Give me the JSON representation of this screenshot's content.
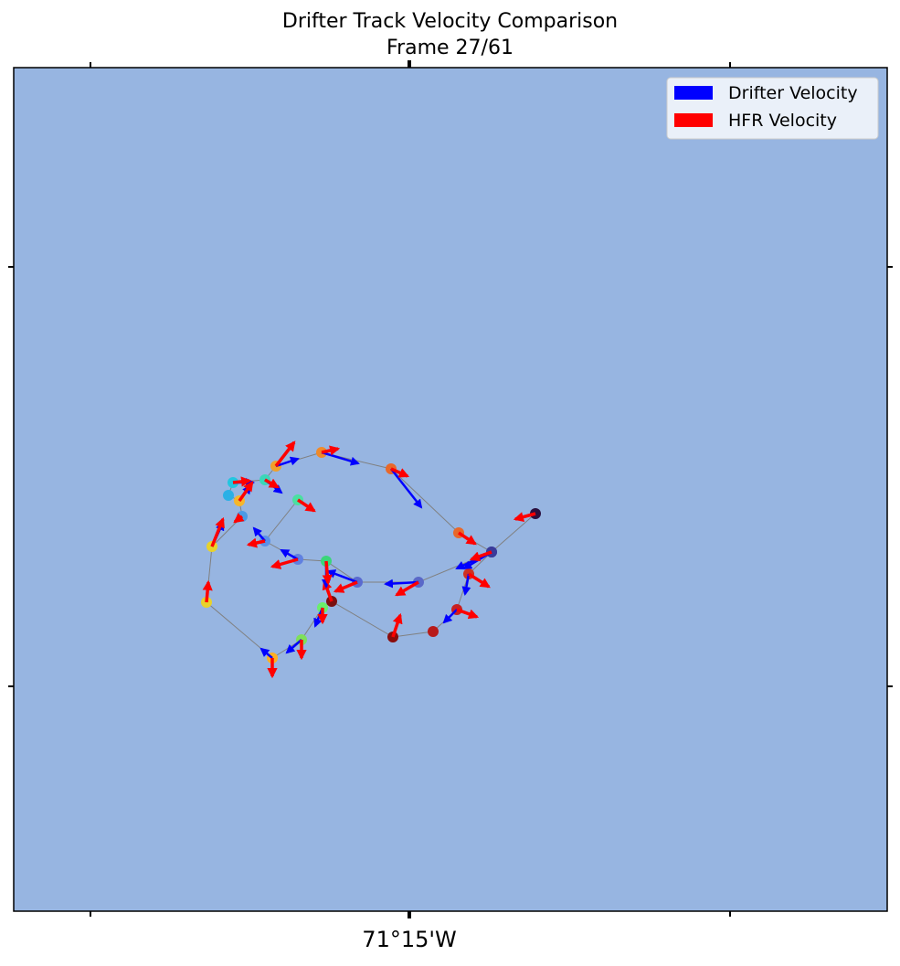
{
  "chart_data": {
    "type": "map-quiver",
    "title": "Drifter Track Velocity Comparison",
    "subtitle": "Frame 27/61",
    "ocean_color": "#97b5e1",
    "grid": false,
    "legend": {
      "placement": "top-right",
      "entries": [
        {
          "label": "Drifter Velocity",
          "color": "#0000ff"
        },
        {
          "label": "HFR Velocity",
          "color": "#ff0000"
        }
      ]
    },
    "x_axis": {
      "tick_labels": [
        "",
        "71°15'W",
        ""
      ]
    },
    "y_axis": {
      "tick_labels": [
        "",
        ""
      ]
    },
    "track": [
      {
        "pt": [
          586,
          562
        ],
        "color": "#2a0f3e",
        "drifter": [
          586,
          562
        ],
        "hfr": [
          -22,
          6
        ]
      },
      {
        "pt": [
          538,
          604
        ],
        "color": "#2f3fa0",
        "drifter": [
          -30,
          18
        ],
        "hfr": [
          -22,
          8
        ]
      },
      {
        "pt": [
          502,
          583
        ],
        "color": "#e8682a",
        "drifter": [
          0,
          0
        ],
        "hfr": [
          18,
          12
        ]
      },
      {
        "pt": [
          428,
          513
        ],
        "color": "#e8682a",
        "drifter": [
          33,
          42
        ],
        "hfr": [
          18,
          8
        ]
      },
      {
        "pt": [
          352,
          495
        ],
        "color": "#f08a2a",
        "drifter": [
          40,
          12
        ],
        "hfr": [
          18,
          -4
        ]
      },
      {
        "pt": [
          302,
          510
        ],
        "color": "#f0a02a",
        "drifter": [
          24,
          -8
        ],
        "hfr": [
          20,
          -26
        ]
      },
      {
        "pt": [
          290,
          525
        ],
        "color": "#3ad6b8",
        "drifter": [
          18,
          14
        ],
        "hfr": [
          14,
          8
        ]
      },
      {
        "pt": [
          255,
          528
        ],
        "color": "#22c6e0",
        "drifter": [
          22,
          0
        ],
        "hfr": [
          18,
          -2
        ]
      },
      {
        "pt": [
          250,
          542
        ],
        "color": "#2ab0e6",
        "drifter": [
          0,
          0
        ],
        "hfr": [
          0,
          0
        ]
      },
      {
        "pt": [
          262,
          548
        ],
        "color": "#f6b62a",
        "drifter": [
          12,
          -16
        ],
        "hfr": [
          14,
          -20
        ]
      },
      {
        "pt": [
          265,
          565
        ],
        "color": "#4a9ae6",
        "drifter": [
          0,
          0
        ],
        "hfr": [
          -8,
          6
        ]
      },
      {
        "pt": [
          232,
          598
        ],
        "color": "#e8d22a",
        "drifter": [
          12,
          -26
        ],
        "hfr": [
          12,
          -30
        ]
      },
      {
        "pt": [
          226,
          659
        ],
        "color": "#e8d22a",
        "drifter": [
          0,
          0
        ],
        "hfr": [
          2,
          -22
        ]
      },
      {
        "pt": [
          298,
          720
        ],
        "color": "#ffb020",
        "drifter": [
          -12,
          -10
        ],
        "hfr": [
          0,
          20
        ]
      },
      {
        "pt": [
          330,
          700
        ],
        "color": "#7ee05a",
        "drifter": [
          -16,
          14
        ],
        "hfr": [
          0,
          20
        ]
      },
      {
        "pt": [
          353,
          665
        ],
        "color": "#6aee6a",
        "drifter": [
          -8,
          20
        ],
        "hfr": [
          0,
          16
        ]
      },
      {
        "pt": [
          363,
          658
        ],
        "color": "#7a1010",
        "drifter": [
          0,
          0
        ],
        "hfr": [
          -8,
          -22
        ]
      },
      {
        "pt": [
          430,
          697
        ],
        "color": "#8a0c0c",
        "drifter": [
          0,
          0
        ],
        "hfr": [
          8,
          -24
        ]
      },
      {
        "pt": [
          474,
          691
        ],
        "color": "#b81a1a",
        "drifter": [
          0,
          0
        ],
        "hfr": [
          0,
          0
        ]
      },
      {
        "pt": [
          500,
          667
        ],
        "color": "#c82020",
        "drifter": [
          -14,
          14
        ],
        "hfr": [
          22,
          8
        ]
      },
      {
        "pt": [
          513,
          628
        ],
        "color": "#d03020",
        "drifter": [
          -4,
          22
        ],
        "hfr": [
          22,
          14
        ]
      },
      {
        "pt": [
          538,
          604
        ],
        "color": "#3a3a9a",
        "drifter": [
          -38,
          18
        ],
        "hfr": [
          -22,
          8
        ]
      },
      {
        "pt": [
          458,
          637
        ],
        "color": "#5a68c8",
        "drifter": [
          -36,
          2
        ],
        "hfr": [
          -24,
          14
        ]
      },
      {
        "pt": [
          391,
          637
        ],
        "color": "#5a6ad0",
        "drifter": [
          -32,
          -12
        ],
        "hfr": [
          -24,
          10
        ]
      },
      {
        "pt": [
          357,
          614
        ],
        "color": "#3ad67a",
        "drifter": [
          0,
          28
        ],
        "hfr": [
          2,
          24
        ]
      },
      {
        "pt": [
          326,
          612
        ],
        "color": "#6080e0",
        "drifter": [
          -18,
          -10
        ],
        "hfr": [
          -28,
          8
        ]
      },
      {
        "pt": [
          290,
          592
        ],
        "color": "#5a90e8",
        "drifter": [
          -12,
          -14
        ],
        "hfr": [
          -18,
          4
        ]
      },
      {
        "pt": [
          326,
          547
        ],
        "color": "#4ae0a0",
        "drifter": [
          0,
          0
        ],
        "hfr": [
          18,
          12
        ]
      }
    ]
  }
}
